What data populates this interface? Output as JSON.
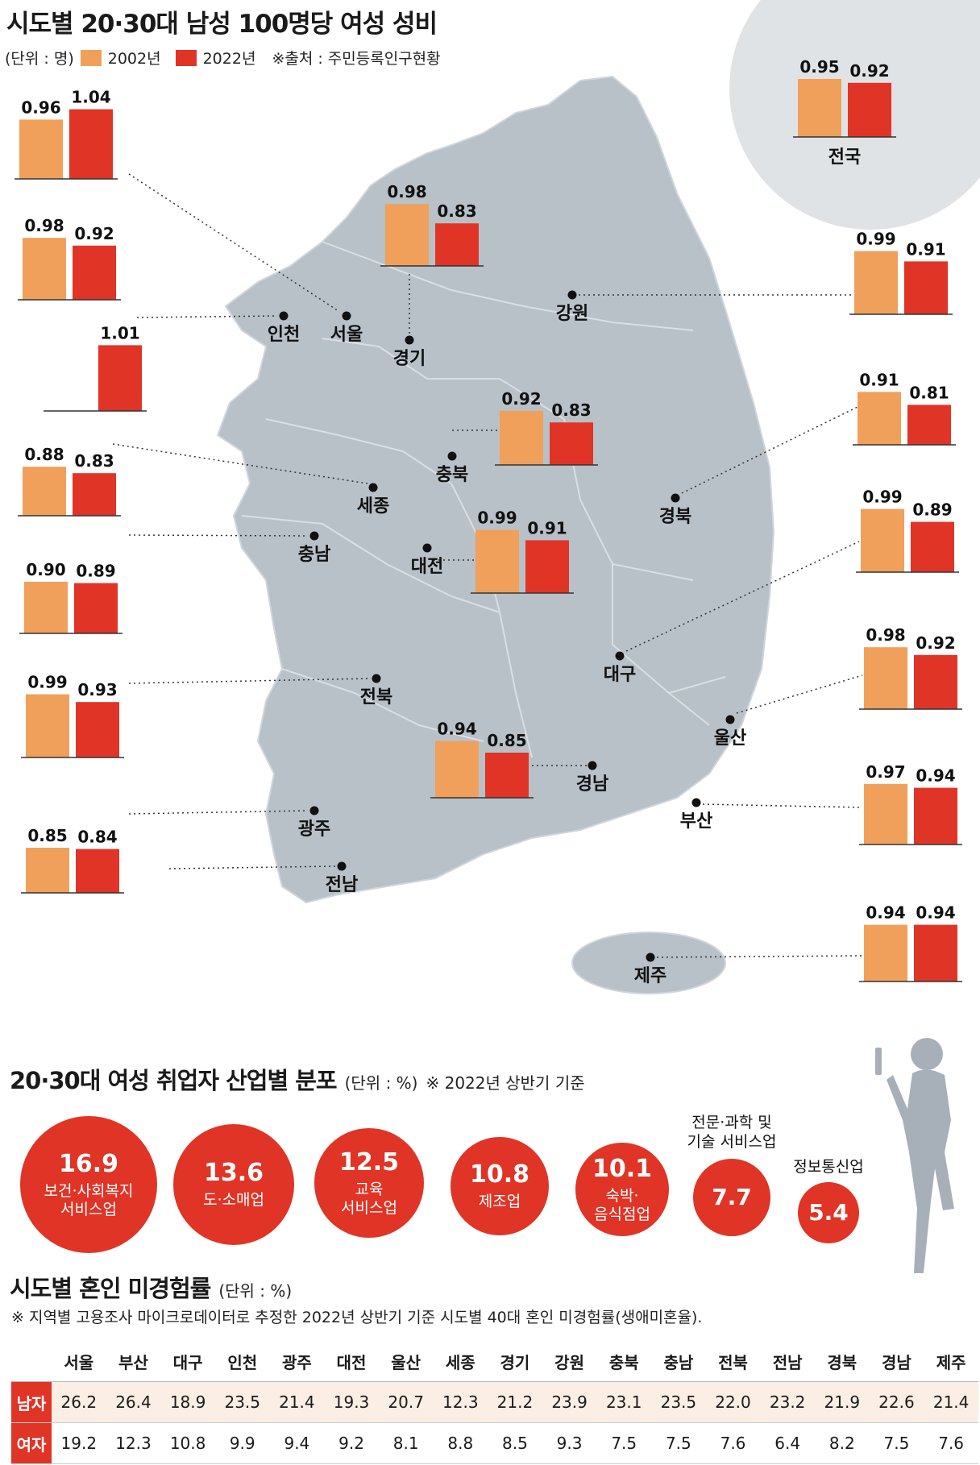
{
  "title": "시도별 20·30대 남성 100명당 여성 성비",
  "legend": {
    "unit": "(단위 : 명)",
    "s1": "2002년",
    "s2": "2022년",
    "source": "※출처 : 주민등록인구현황"
  },
  "colors": {
    "s2002": "#f0a05a",
    "s2022": "#e03426",
    "map": "#b8c1c8",
    "map_border": "#d6dce0",
    "circle_bg": "#dfe3e6",
    "accent": "#e03426"
  },
  "chart_data": [
    {
      "type": "bar",
      "title": "시도별 20·30대 남성 100명당 여성 성비",
      "ylabel": "(단위 : 명)",
      "series_names": [
        "2002년",
        "2022년"
      ],
      "regions": [
        {
          "name": "전국",
          "v2002": "0.95",
          "v2022": "0.92"
        },
        {
          "name": "서울",
          "v2002": "0.96",
          "v2022": "1.04"
        },
        {
          "name": "인천",
          "v2002": "0.98",
          "v2022": "0.92"
        },
        {
          "name": "세종",
          "v2002": "",
          "v2022": "1.01"
        },
        {
          "name": "충남",
          "v2002": "0.88",
          "v2022": "0.83"
        },
        {
          "name": "전북",
          "v2002": "0.90",
          "v2022": "0.89"
        },
        {
          "name": "광주",
          "v2002": "0.99",
          "v2022": "0.93"
        },
        {
          "name": "전남",
          "v2002": "0.85",
          "v2022": "0.84"
        },
        {
          "name": "경기",
          "v2002": "0.98",
          "v2022": "0.83"
        },
        {
          "name": "충북",
          "v2002": "0.92",
          "v2022": "0.83"
        },
        {
          "name": "대전",
          "v2002": "0.99",
          "v2022": "0.91"
        },
        {
          "name": "경남",
          "v2002": "0.94",
          "v2022": "0.85"
        },
        {
          "name": "강원",
          "v2002": "0.99",
          "v2022": "0.91"
        },
        {
          "name": "경북",
          "v2002": "0.91",
          "v2022": "0.81"
        },
        {
          "name": "대구",
          "v2002": "0.99",
          "v2022": "0.89"
        },
        {
          "name": "울산",
          "v2002": "0.98",
          "v2022": "0.92"
        },
        {
          "name": "부산",
          "v2002": "0.97",
          "v2022": "0.94"
        },
        {
          "name": "제주",
          "v2002": "0.94",
          "v2022": "0.94"
        }
      ]
    },
    {
      "type": "bubble",
      "title": "20·30대 여성 취업자 산업별 분포",
      "unit": "(단위 : %)",
      "note": "※ 2022년 상반기 기준",
      "items": [
        {
          "value": "16.9",
          "label": "보건·사회복지\n서비스업"
        },
        {
          "value": "13.6",
          "label": "도·소매업"
        },
        {
          "value": "12.5",
          "label": "교육\n서비스업"
        },
        {
          "value": "10.8",
          "label": "제조업"
        },
        {
          "value": "10.1",
          "label": "숙박·\n음식점업"
        },
        {
          "value": "7.7",
          "label": "전문·과학 및\n기술 서비스업"
        },
        {
          "value": "5.4",
          "label": "정보통신업"
        }
      ]
    },
    {
      "type": "table",
      "title": "시도별 혼인 미경험률",
      "unit": "(단위 : %)",
      "note": "※ 지역별 고용조사 마이크로데이터로 추정한 2022년 상반기 기준 시도별 40대 혼인 미경험률(생애미혼율).",
      "columns": [
        "서울",
        "부산",
        "대구",
        "인천",
        "광주",
        "대전",
        "울산",
        "세종",
        "경기",
        "강원",
        "충북",
        "충남",
        "전북",
        "전남",
        "경북",
        "경남",
        "제주"
      ],
      "rows": [
        {
          "label": "남자",
          "values": [
            "26.2",
            "26.4",
            "18.9",
            "23.5",
            "21.4",
            "19.3",
            "20.7",
            "12.3",
            "21.2",
            "23.9",
            "23.1",
            "23.5",
            "22.0",
            "23.2",
            "21.9",
            "22.6",
            "21.4"
          ]
        },
        {
          "label": "여자",
          "values": [
            "19.2",
            "12.3",
            "10.8",
            "9.9",
            "9.4",
            "9.2",
            "8.1",
            "8.8",
            "8.5",
            "9.3",
            "7.5",
            "7.5",
            "7.6",
            "6.4",
            "8.2",
            "7.5",
            "7.6"
          ]
        }
      ]
    }
  ]
}
